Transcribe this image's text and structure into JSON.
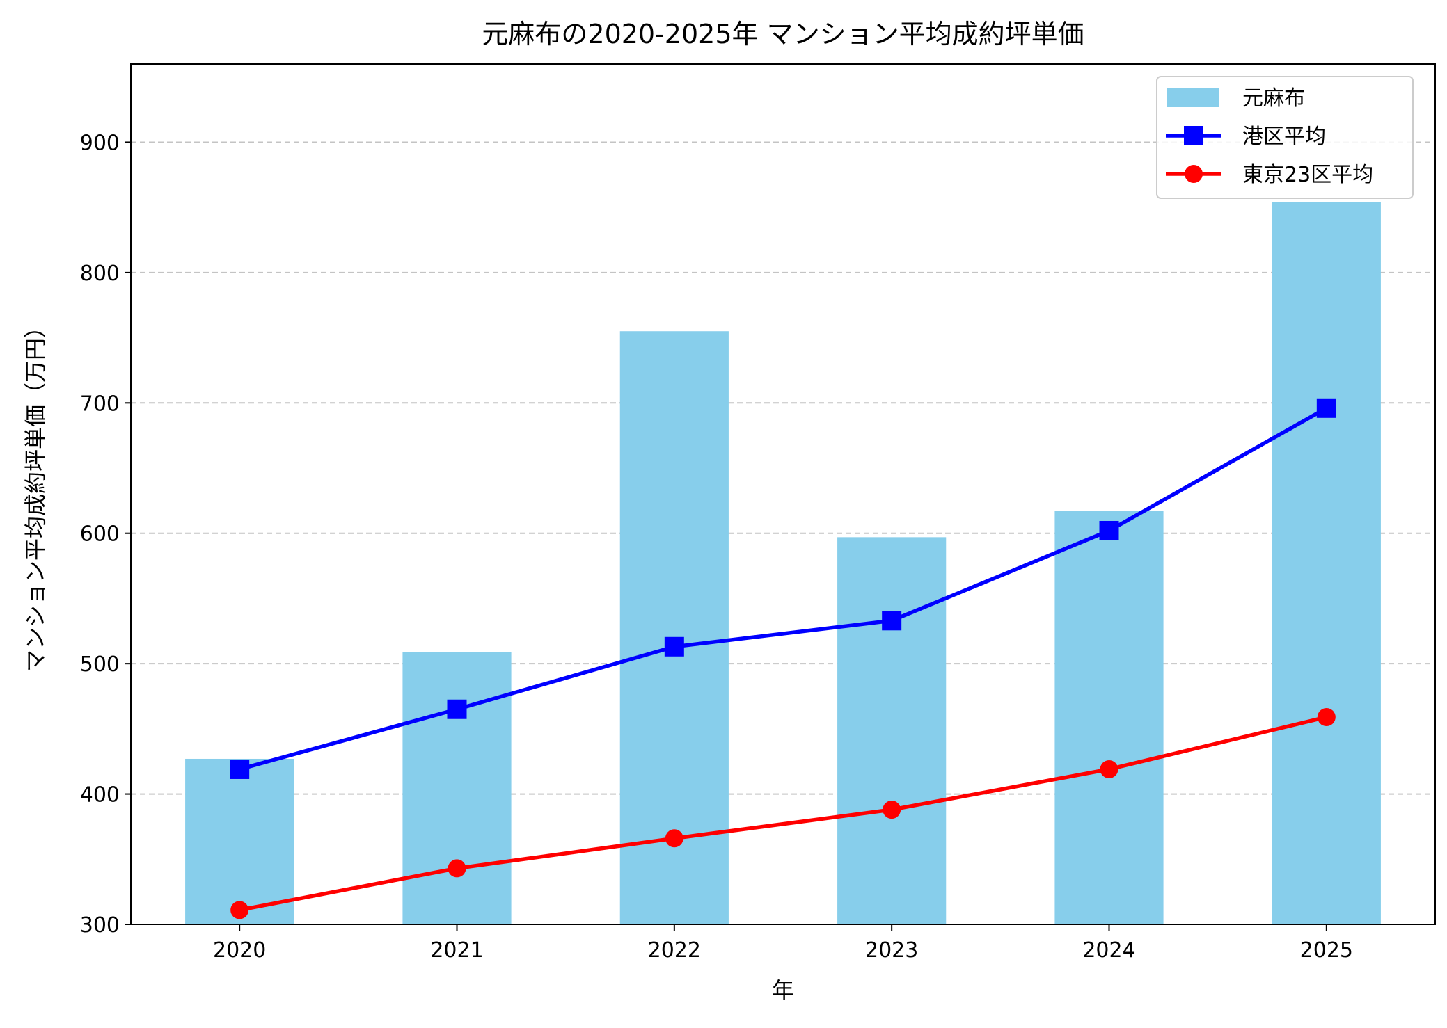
{
  "chart_data": {
    "type": "bar+line",
    "title": "元麻布の2020-2025年 マンション平均成約坪単価",
    "xlabel": "年",
    "ylabel": "マンション平均成約坪単価（万円）",
    "categories": [
      "2020",
      "2021",
      "2022",
      "2023",
      "2024",
      "2025"
    ],
    "ylim": [
      300,
      960
    ],
    "yticks": [
      "300",
      "400",
      "500",
      "600",
      "700",
      "800",
      "900"
    ],
    "grid": "y-dashed",
    "legend_position": "top-right",
    "series": [
      {
        "name": "元麻布",
        "type": "bar",
        "color": "#87CEEB",
        "values": [
          427,
          509,
          755,
          597,
          617,
          854
        ]
      },
      {
        "name": "港区平均",
        "type": "line",
        "marker": "square",
        "color": "#0000FF",
        "values": [
          419,
          465,
          513,
          533,
          602,
          696
        ]
      },
      {
        "name": "東京23区平均",
        "type": "line",
        "marker": "circle",
        "color": "#FF0000",
        "values": [
          311,
          343,
          366,
          388,
          419,
          459
        ]
      }
    ]
  }
}
